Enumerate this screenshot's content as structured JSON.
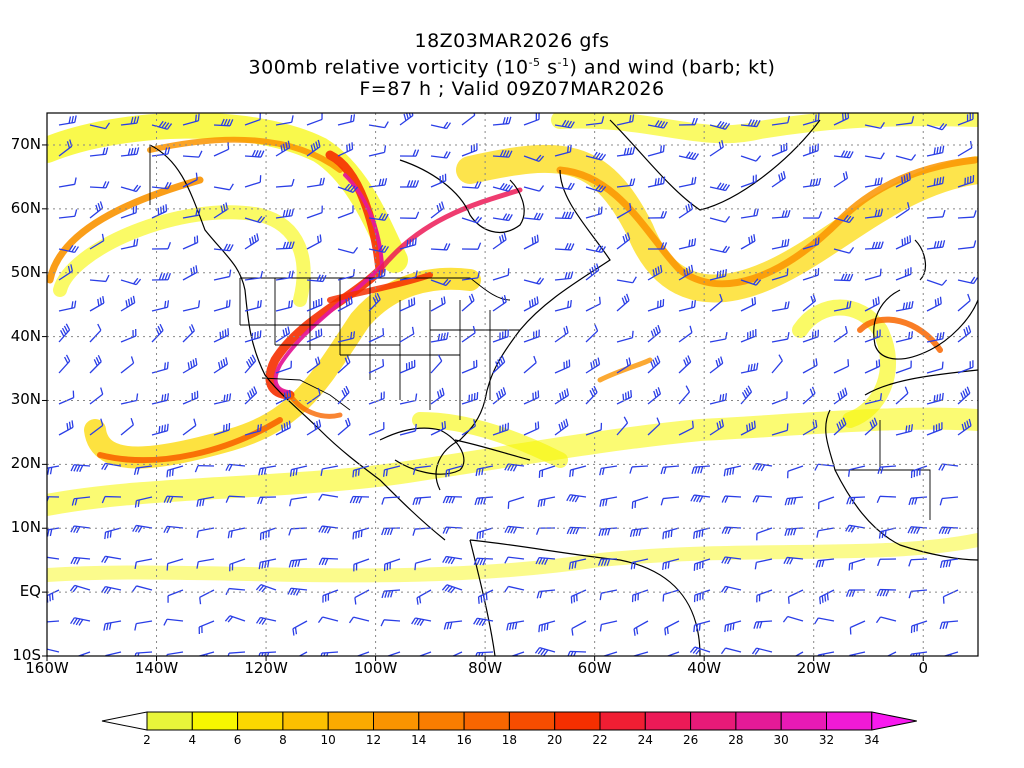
{
  "title": {
    "line1": "18Z03MAR2026 gfs",
    "line2_prefix": "300mb relative vorticity (10",
    "line2_exp1": "-5",
    "line2_mid": " s",
    "line2_exp2": "-1",
    "line2_suffix": ") and wind (barb; kt)",
    "line3": "F=87 h ; Valid 09Z07MAR2026"
  },
  "map": {
    "lat_labels": [
      "70N",
      "60N",
      "50N",
      "40N",
      "30N",
      "20N",
      "10N",
      "EQ",
      "10S"
    ],
    "lon_labels": [
      "160W",
      "140W",
      "120W",
      "100W",
      "80W",
      "60W",
      "40W",
      "20W",
      "0"
    ],
    "lat_range": [
      -10,
      75
    ],
    "lon_range": [
      -160,
      10
    ],
    "grid": true,
    "barb_color": "#2a3ee6"
  },
  "colorbar": {
    "levels": [
      2,
      4,
      6,
      8,
      10,
      12,
      14,
      16,
      18,
      20,
      22,
      24,
      26,
      28,
      30,
      32,
      34
    ],
    "labels": [
      "2",
      "4",
      "6",
      "8",
      "10",
      "12",
      "14",
      "16",
      "18",
      "20",
      "22",
      "24",
      "26",
      "28",
      "30",
      "32",
      "34"
    ],
    "colors": [
      "#e8f53a",
      "#f7f700",
      "#fcd800",
      "#fcc000",
      "#fbaa00",
      "#fa9400",
      "#f97d00",
      "#f86600",
      "#f64d00",
      "#f52f00",
      "#f01e33",
      "#ec1a57",
      "#e81a78",
      "#e41a97",
      "#e81ab5",
      "#f01ad6",
      "#f81aef"
    ]
  }
}
